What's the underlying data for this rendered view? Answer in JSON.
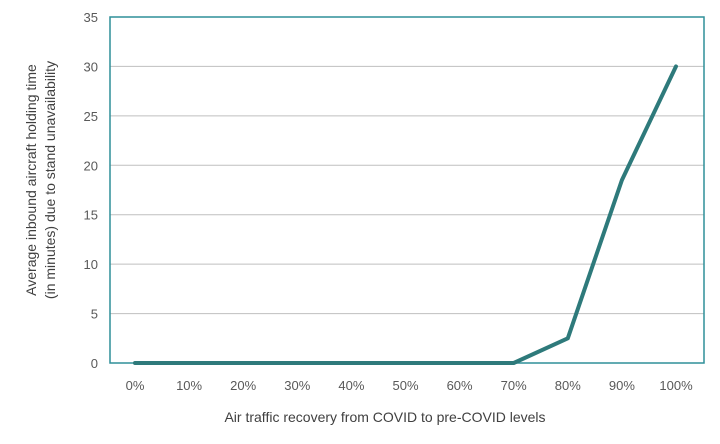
{
  "chart_data": {
    "type": "line",
    "title": "",
    "xlabel": "Air traffic recovery from COVID to pre-COVID levels",
    "ylabel_lines": [
      "Average inbound aircraft holding time",
      "(in minutes) due to stand unavailability"
    ],
    "categories": [
      "0%",
      "10%",
      "20%",
      "30%",
      "40%",
      "50%",
      "60%",
      "70%",
      "80%",
      "90%",
      "100%"
    ],
    "series": [
      {
        "values": [
          0,
          0,
          0,
          0,
          0,
          0,
          0,
          0,
          2.5,
          18.5,
          30
        ]
      }
    ],
    "ylim": [
      0,
      35
    ],
    "yticks": [
      0,
      5,
      10,
      15,
      20,
      25,
      30,
      35
    ],
    "grid": true,
    "legend": "none",
    "colors": {
      "line": "#2e7a7b",
      "grid": "#bfbfbf",
      "frame": "#2f8f99"
    }
  }
}
